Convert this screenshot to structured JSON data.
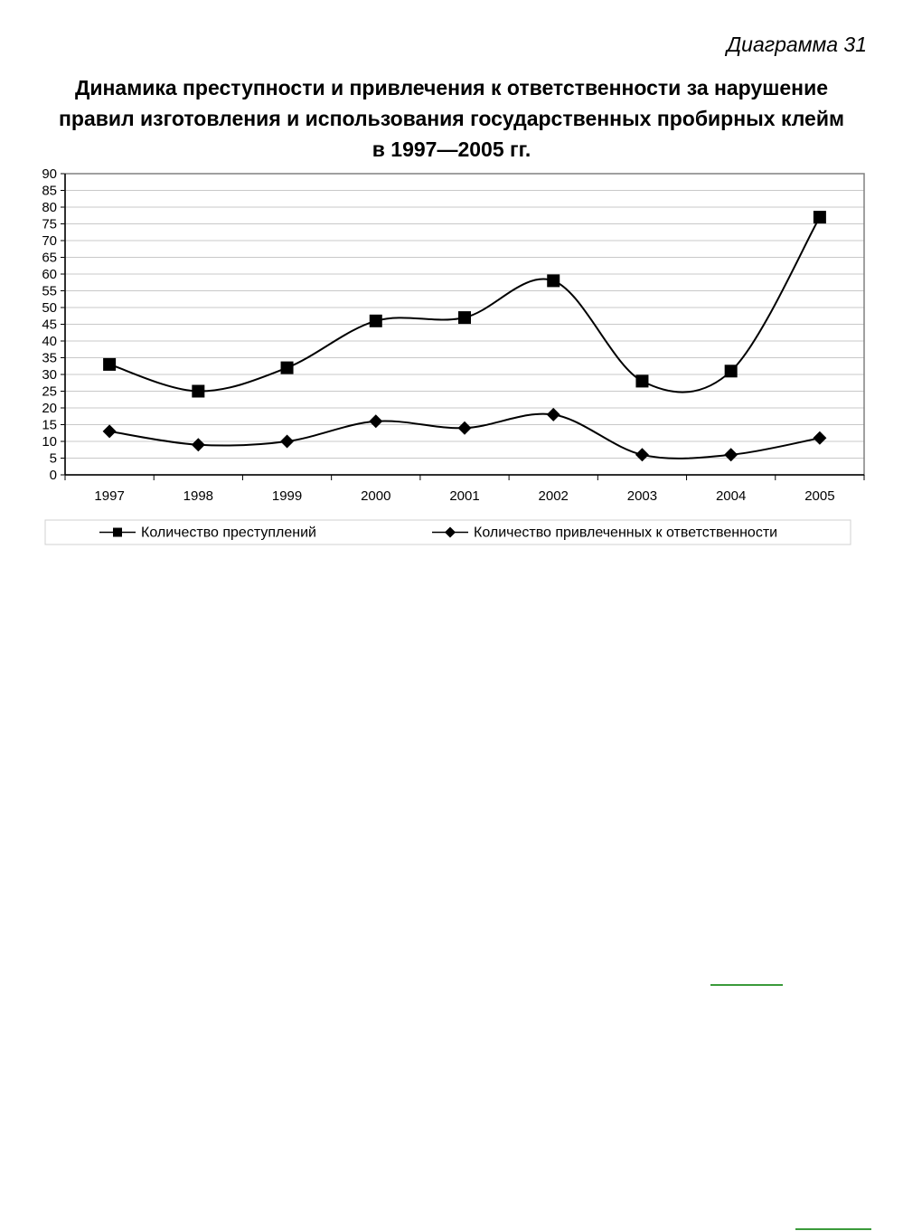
{
  "header": {
    "caption": "Диаграмма 31",
    "title_lines": [
      "Динамика преступности и привлечения к ответственности за нарушение",
      "правил изготовления и использования государственных пробирных клейм",
      "в 1997—2005 гг."
    ]
  },
  "chart_data": {
    "type": "line",
    "title": "Динамика преступности и привлечения к ответственности за нарушение правил изготовления и использования государственных пробирных клейм в 1997—2005 гг.",
    "categories": [
      "1997",
      "1998",
      "1999",
      "2000",
      "2001",
      "2002",
      "2003",
      "2004",
      "2005"
    ],
    "series": [
      {
        "name": "Количество преступлений",
        "marker": "square",
        "values": [
          33,
          25,
          32,
          46,
          47,
          58,
          28,
          31,
          77
        ]
      },
      {
        "name": "Количество привлеченных к ответственности",
        "marker": "diamond",
        "values": [
          13,
          9,
          10,
          16,
          14,
          18,
          6,
          6,
          11
        ]
      }
    ],
    "ylim": [
      0,
      90
    ],
    "ytick_step": 5,
    "grid": true,
    "smooth": true,
    "legend_position": "bottom",
    "line_color": "#000000",
    "grid_color": "#c8c8c8",
    "frame_color": "#808080"
  }
}
